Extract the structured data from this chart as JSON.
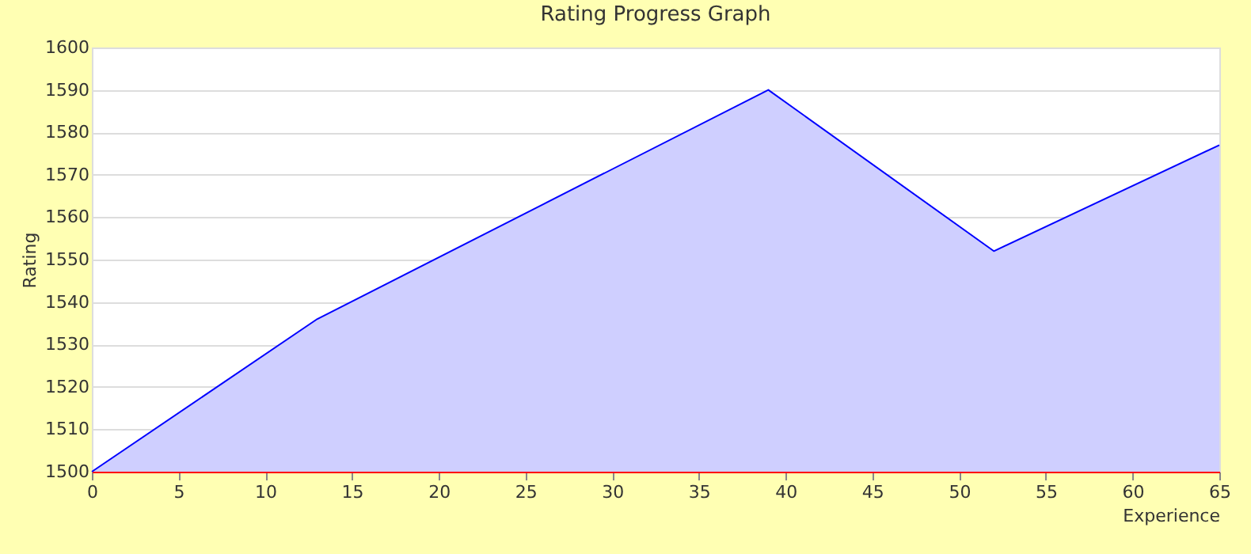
{
  "chart_data": {
    "type": "area",
    "title": "Rating Progress Graph",
    "xlabel": "Experience",
    "ylabel": "Rating",
    "x": [
      0,
      13,
      26,
      39,
      52,
      65
    ],
    "series": [
      {
        "color": "#0000ff",
        "values": [
          1500,
          1536,
          1563,
          1590,
          1552,
          1577
        ]
      }
    ],
    "xlim": [
      0,
      65
    ],
    "xticks": [
      0,
      5,
      10,
      15,
      20,
      25,
      30,
      35,
      40,
      45,
      50,
      55,
      60,
      65
    ],
    "ylim": [
      1500,
      1600
    ],
    "yticks": [
      1500,
      1510,
      1520,
      1530,
      1540,
      1550,
      1560,
      1570,
      1580,
      1590,
      1600
    ],
    "grid": "y",
    "marker": "none",
    "line_style": "solid"
  }
}
